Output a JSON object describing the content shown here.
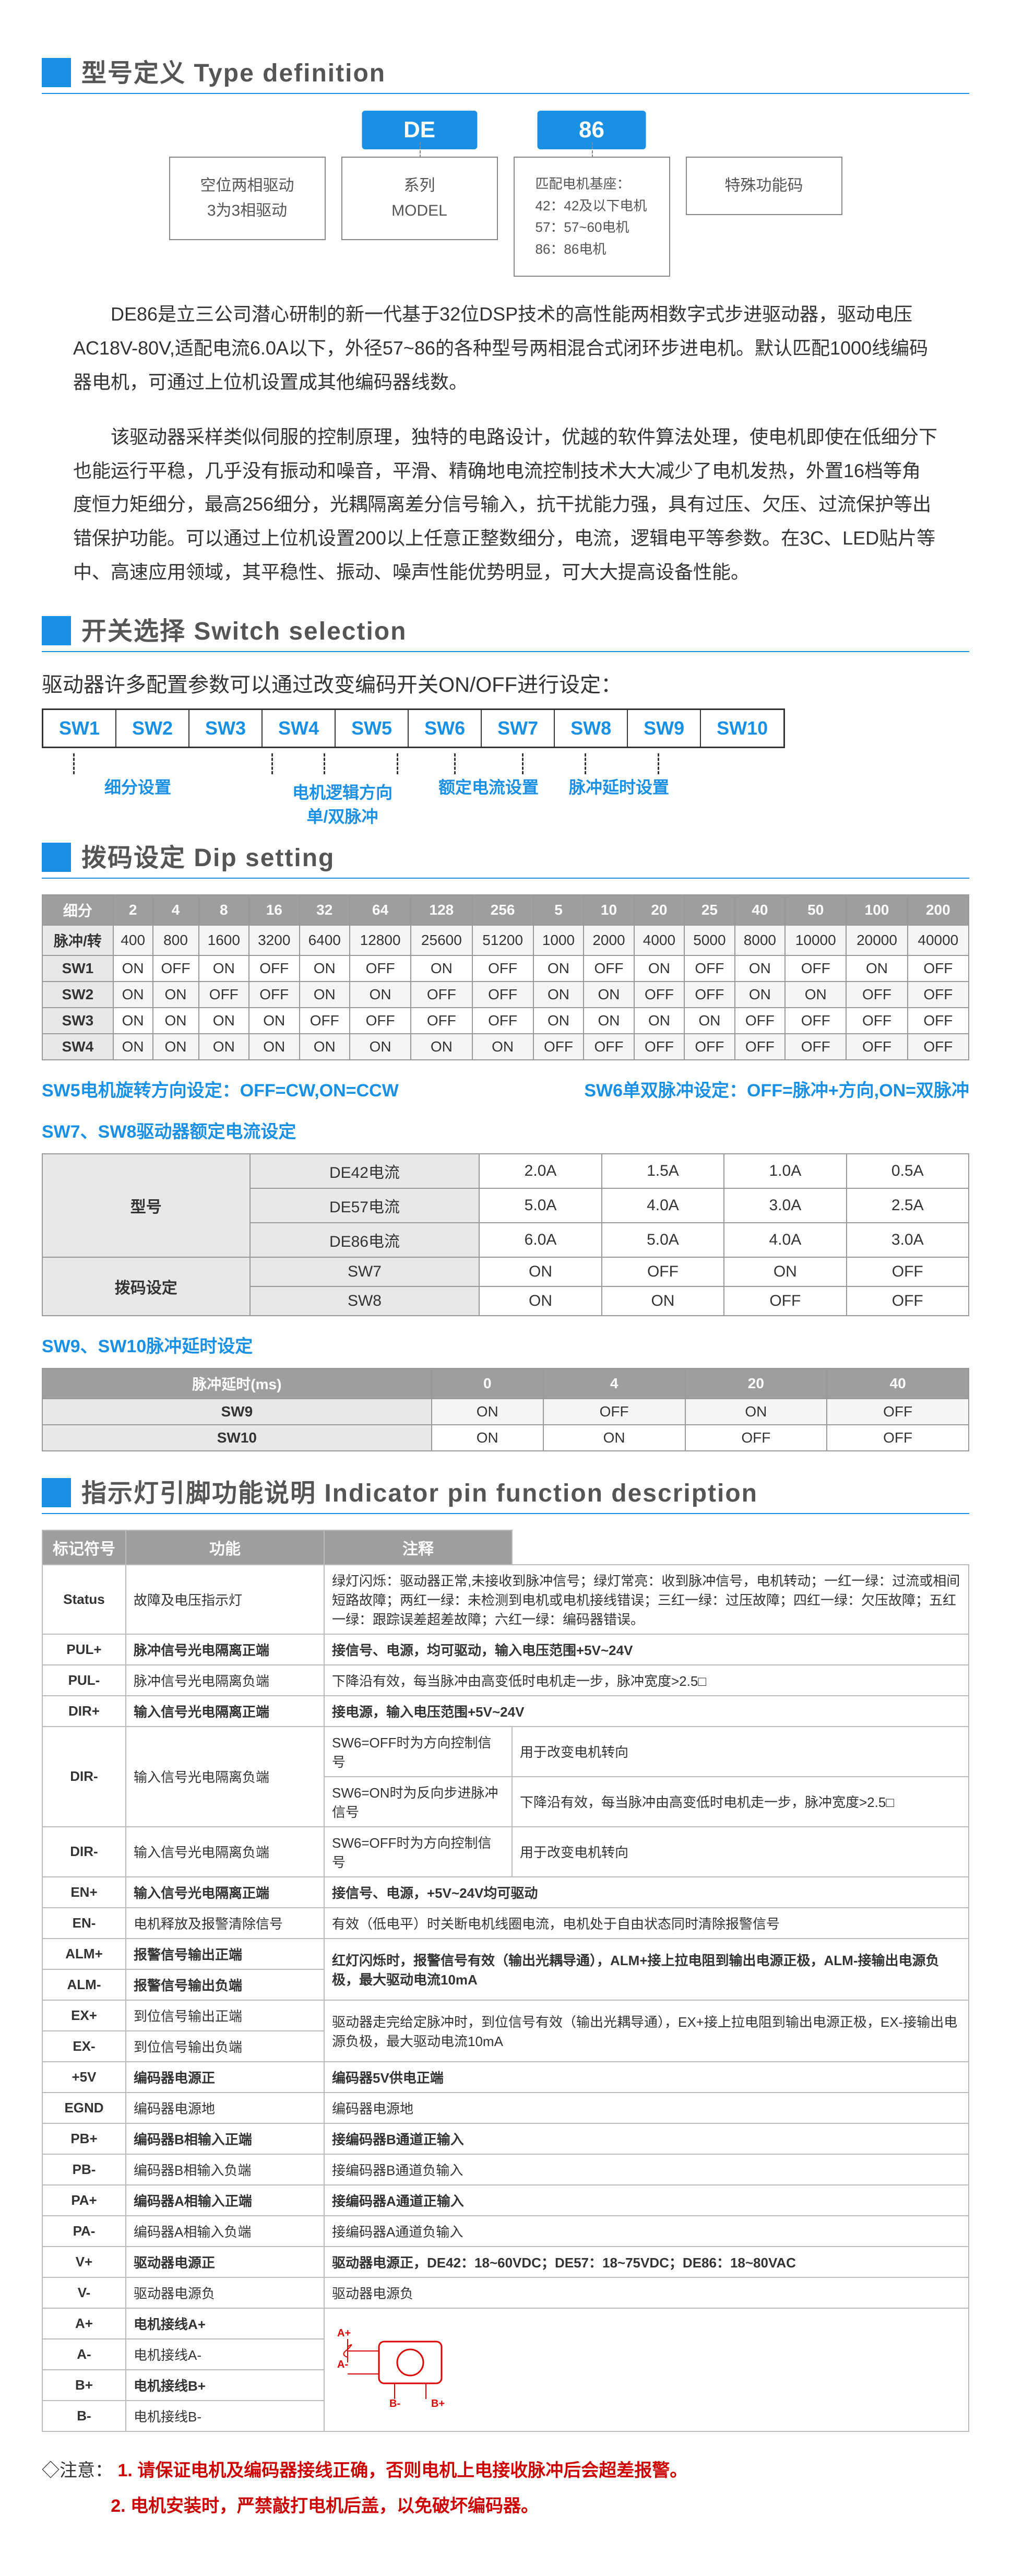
{
  "sections": {
    "type_def": "型号定义  Type definition",
    "switch_sel": "开关选择  Switch selection",
    "dip": "拨码设定  Dip setting",
    "indicator": "指示灯引脚功能说明  Indicator pin function description"
  },
  "type_boxes": {
    "b1": "空位两相驱动\n3为3相驱动",
    "b2_label": "DE",
    "b2": "系列\nMODEL",
    "b3_label": "86",
    "b3": "匹配电机基座：\n42：42及以下电机\n57：57~60电机\n86：86电机",
    "b4": "特殊功能码"
  },
  "desc1": "DE86是立三公司潜心研制的新一代基于32位DSP技术的高性能两相数字式步进驱动器，驱动电压AC18V-80V,适配电流6.0A以下，外径57~86的各种型号两相混合式闭环步进电机。默认匹配1000线编码器电机，可通过上位机设置成其他编码器线数。",
  "desc2": "该驱动器采样类似伺服的控制原理，独特的电路设计，优越的软件算法处理，使电机即使在低细分下也能运行平稳，几乎没有振动和噪音，平滑、精确地电流控制技术大大减少了电机发热，外置16档等角度恒力矩细分，最高256细分，光耦隔离差分信号输入，抗干扰能力强，具有过压、欠压、过流保护等出错保护功能。可以通过上位机设置200以上任意正整数细分，电流，逻辑电平等参数。在3C、LED贴片等中、高速应用领域，其平稳性、振动、噪声性能优势明显，可大大提高设备性能。",
  "switch_intro": "驱动器许多配置参数可以通过改变编码开关ON/OFF进行设定：",
  "switches": [
    "SW1",
    "SW2",
    "SW3",
    "SW4",
    "SW5",
    "SW6",
    "SW7",
    "SW8",
    "SW9",
    "SW10"
  ],
  "sw_groups": {
    "g1": "细分设置",
    "g2": "电机逻辑方向\n单/双脉冲",
    "g3": "额定电流设置",
    "g4": "脉冲延时设置"
  },
  "dip_table": {
    "header": [
      "细分",
      "2",
      "4",
      "8",
      "16",
      "32",
      "64",
      "128",
      "256",
      "5",
      "10",
      "20",
      "25",
      "40",
      "50",
      "100",
      "200"
    ],
    "rows": [
      [
        "脉冲/转",
        "400",
        "800",
        "1600",
        "3200",
        "6400",
        "12800",
        "25600",
        "51200",
        "1000",
        "2000",
        "4000",
        "5000",
        "8000",
        "10000",
        "20000",
        "40000"
      ],
      [
        "SW1",
        "ON",
        "OFF",
        "ON",
        "OFF",
        "ON",
        "OFF",
        "ON",
        "OFF",
        "ON",
        "OFF",
        "ON",
        "OFF",
        "ON",
        "OFF",
        "ON",
        "OFF"
      ],
      [
        "SW2",
        "ON",
        "ON",
        "OFF",
        "OFF",
        "ON",
        "ON",
        "OFF",
        "OFF",
        "ON",
        "ON",
        "OFF",
        "OFF",
        "ON",
        "ON",
        "OFF",
        "OFF"
      ],
      [
        "SW3",
        "ON",
        "ON",
        "ON",
        "ON",
        "OFF",
        "OFF",
        "OFF",
        "OFF",
        "ON",
        "ON",
        "ON",
        "ON",
        "OFF",
        "OFF",
        "OFF",
        "OFF"
      ],
      [
        "SW4",
        "ON",
        "ON",
        "ON",
        "ON",
        "ON",
        "ON",
        "ON",
        "ON",
        "OFF",
        "OFF",
        "OFF",
        "OFF",
        "OFF",
        "OFF",
        "OFF",
        "OFF"
      ]
    ]
  },
  "sw5_note": "SW5电机旋转方向设定：OFF=CW,ON=CCW",
  "sw6_note": "SW6单双脉冲设定：OFF=脉冲+方向,ON=双脉冲",
  "sw78_title": "SW7、SW8驱动器额定电流设定",
  "curr_table": {
    "rows": [
      [
        "型号",
        "DE42电流",
        "2.0A",
        "1.5A",
        "1.0A",
        "0.5A"
      ],
      [
        "",
        "DE57电流",
        "5.0A",
        "4.0A",
        "3.0A",
        "2.5A"
      ],
      [
        "",
        "DE86电流",
        "6.0A",
        "5.0A",
        "4.0A",
        "3.0A"
      ],
      [
        "拨码设定",
        "SW7",
        "ON",
        "OFF",
        "ON",
        "OFF"
      ],
      [
        "",
        "SW8",
        "ON",
        "ON",
        "OFF",
        "OFF"
      ]
    ]
  },
  "sw910_title": "SW9、SW10脉冲延时设定",
  "delay_table": {
    "header": [
      "脉冲延时(ms)",
      "0",
      "4",
      "20",
      "40"
    ],
    "rows": [
      [
        "SW9",
        "ON",
        "OFF",
        "ON",
        "OFF"
      ],
      [
        "SW10",
        "ON",
        "ON",
        "OFF",
        "OFF"
      ]
    ]
  },
  "pin_table": {
    "header": [
      "标记符号",
      "功能",
      "注释"
    ],
    "rows": [
      {
        "sym": "Status",
        "func": "故障及电压指示灯",
        "note": "绿灯闪烁：驱动器正常,未接收到脉冲信号；绿灯常亮：收到脉冲信号，电机转动；一红一绿：过流或相间短路故障；两红一绿：未检测到电机或电机接线错误；三红一绿：过压故障；四红一绿：欠压故障；五红一绿：跟踪误差超差故障；六红一绿：编码器错误。",
        "bold": false
      },
      {
        "sym": "PUL+",
        "func": "脉冲信号光电隔离正端",
        "note": "接信号、电源，均可驱动，输入电压范围+5V~24V",
        "bold": true
      },
      {
        "sym": "PUL-",
        "func": "脉冲信号光电隔离负端",
        "note": "下降沿有效，每当脉冲由高变低时电机走一步，脉冲宽度>2.5□",
        "bold": false
      },
      {
        "sym": "DIR+",
        "func": "输入信号光电隔离正端",
        "note": "接电源，输入电压范围+5V~24V",
        "bold": true
      },
      {
        "sym": "DIR-",
        "func": "输入信号光电隔离负端",
        "note_multi": [
          "SW6=OFF时为方向控制信号",
          "用于改变电机转向"
        ],
        "note_multi2": [
          "SW6=ON时为反向步进脉冲信号",
          "下降沿有效，每当脉冲由高变低时电机走一步，脉冲宽度>2.5□"
        ],
        "bold": false
      },
      {
        "sym": "EN+",
        "func": "输入信号光电隔离正端",
        "note": "接信号、电源，+5V~24V均可驱动",
        "bold": true
      },
      {
        "sym": "EN-",
        "func": "电机释放及报警清除信号",
        "note": "有效（低电平）时关断电机线圈电流，电机处于自由状态同时清除报警信号",
        "bold": false
      },
      {
        "sym": "ALM+",
        "func": "报警信号输出正端",
        "note": "红灯闪烁时，报警信号有效（输出光耦导通），ALM+接上拉电阻到输出电源正极，ALM-接输出电源负极，最大驱动电流10mA",
        "bold": true,
        "rowspan": 2
      },
      {
        "sym": "ALM-",
        "func": "报警信号输出负端",
        "note": "",
        "bold": true
      },
      {
        "sym": "EX+",
        "func": "到位信号输出正端",
        "note": "驱动器走完给定脉冲时，到位信号有效（输出光耦导通），EX+接上拉电阻到输出电源正极，EX-接输出电源负极，最大驱动电流10mA",
        "bold": false,
        "rowspan": 2
      },
      {
        "sym": "EX-",
        "func": "到位信号输出负端",
        "note": "",
        "bold": false
      },
      {
        "sym": "+5V",
        "func": "编码器电源正",
        "note": "编码器5V供电正端",
        "bold": true
      },
      {
        "sym": "EGND",
        "func": "编码器电源地",
        "note": "编码器电源地",
        "bold": false
      },
      {
        "sym": "PB+",
        "func": "编码器B相输入正端",
        "note": "接编码器B通道正输入",
        "bold": true
      },
      {
        "sym": "PB-",
        "func": "编码器B相输入负端",
        "note": "接编码器B通道负输入",
        "bold": false
      },
      {
        "sym": "PA+",
        "func": "编码器A相输入正端",
        "note": "接编码器A通道正输入",
        "bold": true
      },
      {
        "sym": "PA-",
        "func": "编码器A相输入负端",
        "note": "接编码器A通道负输入",
        "bold": false
      },
      {
        "sym": "V+",
        "func": "驱动器电源正",
        "note": "驱动器电源正，DE42：18~60VDC；DE57：18~75VDC；DE86：18~80VAC",
        "bold": true
      },
      {
        "sym": "V-",
        "func": "驱动器电源负",
        "note": "驱动器电源负",
        "bold": false
      },
      {
        "sym": "A+",
        "func": "电机接线A+",
        "note": "",
        "bold": true,
        "diagram": true
      },
      {
        "sym": "A-",
        "func": "电机接线A-",
        "note": "",
        "bold": false
      },
      {
        "sym": "B+",
        "func": "电机接线B+",
        "note": "",
        "bold": true
      },
      {
        "sym": "B-",
        "func": "电机接线B-",
        "note": "",
        "bold": false
      }
    ]
  },
  "notice_label": "◇注意：",
  "notice1": "1. 请保证电机及编码器接线正确，否则电机上电接收脉冲后会超差报警。",
  "notice2": "2. 电机安装时，严禁敲打电机后盖，以免破坏编码器。"
}
